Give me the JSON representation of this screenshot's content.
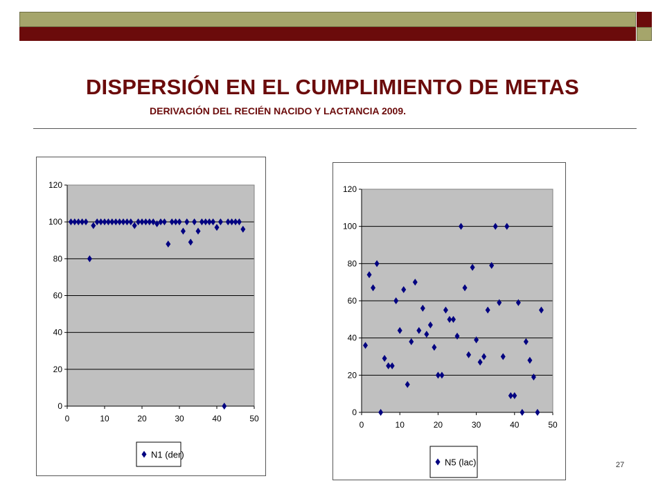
{
  "slide": {
    "title": "DISPERSIÓN EN EL CUMPLIMIENTO DE METAS",
    "subtitle": "DERIVACIÓN DEL RECIÉN NACIDO Y LACTANCIA  2009.",
    "page_number": "27",
    "colors": {
      "maroon": "#6b0b0b",
      "olive": "#a5a56b",
      "plot_bg": "#c0c0c0",
      "marker": "#000080"
    }
  },
  "chart_data": [
    {
      "type": "scatter",
      "title": "",
      "xlabel": "",
      "ylabel": "",
      "xlim": [
        0,
        50
      ],
      "ylim": [
        0,
        120
      ],
      "x_ticks": [
        "0",
        "10",
        "20",
        "30",
        "40",
        "50"
      ],
      "y_ticks": [
        "0",
        "20",
        "40",
        "60",
        "80",
        "100",
        "120"
      ],
      "grid": "horizontal",
      "legend_position": "bottom",
      "series": [
        {
          "name": "N1 (der)",
          "marker": "diamond",
          "x": [
            1,
            2,
            3,
            4,
            5,
            6,
            7,
            8,
            9,
            10,
            11,
            12,
            13,
            14,
            15,
            16,
            17,
            18,
            19,
            20,
            21,
            22,
            23,
            24,
            25,
            26,
            27,
            28,
            29,
            30,
            31,
            32,
            33,
            34,
            35,
            36,
            37,
            38,
            39,
            40,
            41,
            42,
            43,
            44,
            45,
            46,
            47
          ],
          "y": [
            100,
            100,
            100,
            100,
            100,
            80,
            98,
            100,
            100,
            100,
            100,
            100,
            100,
            100,
            100,
            100,
            100,
            98,
            100,
            100,
            100,
            100,
            100,
            99,
            100,
            100,
            88,
            100,
            100,
            100,
            95,
            100,
            89,
            100,
            95,
            100,
            100,
            100,
            100,
            97,
            100,
            0,
            100,
            100,
            100,
            100,
            96
          ]
        }
      ]
    },
    {
      "type": "scatter",
      "title": "",
      "xlabel": "",
      "ylabel": "",
      "xlim": [
        0,
        50
      ],
      "ylim": [
        0,
        120
      ],
      "x_ticks": [
        "0",
        "10",
        "20",
        "30",
        "40",
        "50"
      ],
      "y_ticks": [
        "0",
        "20",
        "40",
        "60",
        "80",
        "100",
        "120"
      ],
      "grid": "horizontal",
      "legend_position": "bottom",
      "series": [
        {
          "name": "N5 (lac)",
          "marker": "diamond",
          "x": [
            1,
            2,
            3,
            4,
            5,
            6,
            7,
            8,
            9,
            10,
            11,
            12,
            13,
            14,
            15,
            16,
            17,
            18,
            19,
            20,
            21,
            22,
            23,
            24,
            25,
            26,
            27,
            28,
            29,
            30,
            31,
            32,
            33,
            34,
            35,
            36,
            37,
            38,
            39,
            40,
            41,
            42,
            43,
            44,
            45,
            46,
            47
          ],
          "y": [
            36,
            74,
            67,
            80,
            0,
            29,
            25,
            25,
            60,
            44,
            66,
            15,
            38,
            70,
            44,
            56,
            42,
            47,
            35,
            20,
            20,
            55,
            50,
            50,
            41,
            100,
            67,
            31,
            78,
            39,
            27,
            30,
            55,
            79,
            100,
            59,
            30,
            100,
            9,
            9,
            59,
            0,
            38,
            28,
            19,
            0,
            55
          ]
        }
      ]
    }
  ]
}
